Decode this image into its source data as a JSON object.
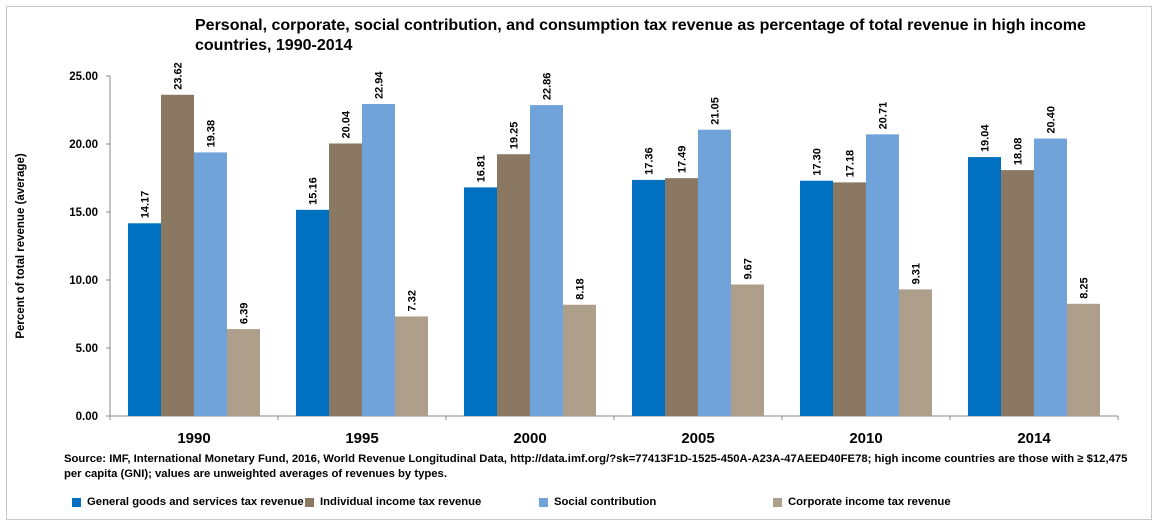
{
  "chart_data": {
    "type": "bar",
    "title": "Personal, corporate, social contribution, and consumption tax revenue as percentage of total revenue in high income countries, 1990-2014",
    "ylabel": "Percent of total revenue (average)",
    "xlabel": "",
    "ylim": [
      0,
      25
    ],
    "yticks": [
      "0.00",
      "5.00",
      "10.00",
      "15.00",
      "20.00",
      "25.00"
    ],
    "categories": [
      "1990",
      "1995",
      "2000",
      "2005",
      "2010",
      "2014"
    ],
    "series": [
      {
        "name": "General goods and services tax revenue",
        "color": "#0070c0",
        "values": [
          14.17,
          15.16,
          16.81,
          17.36,
          17.3,
          19.04
        ],
        "labels": [
          "14.17",
          "15.16",
          "16.81",
          "17.36",
          "17.30",
          "19.04"
        ]
      },
      {
        "name": "Individual income tax revenue",
        "color": "#8b7863",
        "values": [
          23.62,
          20.04,
          19.25,
          17.49,
          17.18,
          18.08
        ],
        "labels": [
          "23.62",
          "20.04",
          "19.25",
          "17.49",
          "17.18",
          "18.08"
        ]
      },
      {
        "name": "Social contribution",
        "color": "#6fa3da",
        "values": [
          19.38,
          22.94,
          22.86,
          21.05,
          20.71,
          20.4
        ],
        "labels": [
          "19.38",
          "22.94",
          "22.86",
          "21.05",
          "20.71",
          "20.40"
        ]
      },
      {
        "name": "Corporate income tax revenue",
        "color": "#ad9f8a",
        "values": [
          6.39,
          7.32,
          8.18,
          9.67,
          9.31,
          8.25
        ],
        "labels": [
          "6.39",
          "7.32",
          "8.18",
          "9.67",
          "9.31",
          "8.25"
        ]
      }
    ],
    "legend_position": "bottom",
    "grid": false
  },
  "source_note": "Source: IMF, International Monetary Fund, 2016, World Revenue Longitudinal Data, http://data.imf.org/?sk=77413F1D-1525-450A-A23A-47AEED40FE78; high income countries are those with ≥ $12,475 per capita (GNI); values are unweighted averages of revenues by types."
}
